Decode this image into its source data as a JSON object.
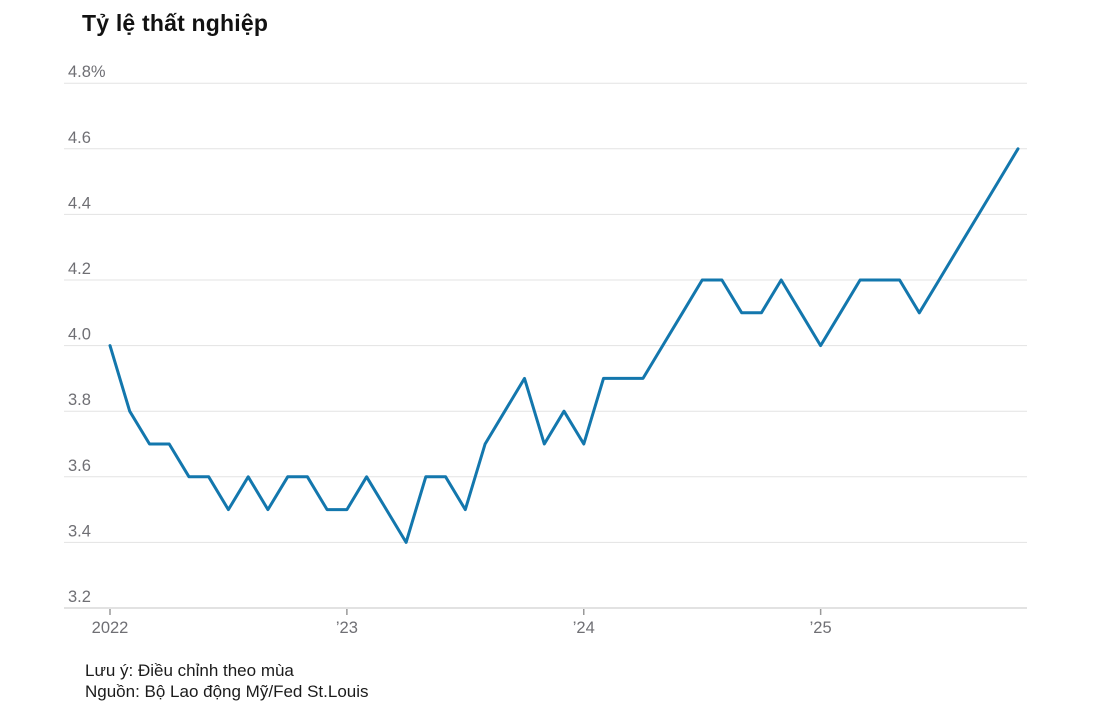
{
  "title": "Tỷ lệ thất nghiệp",
  "footer": {
    "note": "Lưu ý: Điều chỉnh theo mùa",
    "source": "Nguồn: Bộ Lao động Mỹ/Fed St.Louis"
  },
  "colors": {
    "line": "#1377ad",
    "grid": "#e3e3e3",
    "axis_line": "#c6c6c6",
    "tick": "#999999",
    "axis_label": "#6f6f74",
    "title": "#121212",
    "footer_text": "#1b1b1b"
  },
  "chart_data": {
    "type": "line",
    "title": "Tỷ lệ thất nghiệp",
    "unit": "%",
    "grid": true,
    "legend": false,
    "ylim": [
      3.2,
      4.8
    ],
    "y_tick_values": [
      3.2,
      3.4,
      3.6,
      3.8,
      4.0,
      4.2,
      4.4,
      4.6,
      4.8
    ],
    "y_tick_labels": [
      "3.2",
      "3.4",
      "3.6",
      "3.8",
      "4.0",
      "4.2",
      "4.4",
      "4.6",
      "4.8%"
    ],
    "x_tick_labels": [
      "2022",
      "’23",
      "’24",
      "’25"
    ],
    "x_tick_month_index": [
      0,
      12,
      24,
      36
    ],
    "x_frequency": "monthly",
    "x": [
      "2022-01",
      "2022-02",
      "2022-03",
      "2022-04",
      "2022-05",
      "2022-06",
      "2022-07",
      "2022-08",
      "2022-09",
      "2022-10",
      "2022-11",
      "2022-12",
      "2023-01",
      "2023-02",
      "2023-03",
      "2023-04",
      "2023-05",
      "2023-06",
      "2023-07",
      "2023-08",
      "2023-09",
      "2023-10",
      "2023-11",
      "2023-12",
      "2024-01",
      "2024-02",
      "2024-03",
      "2024-04",
      "2024-05",
      "2024-06",
      "2024-07",
      "2024-08",
      "2024-09",
      "2024-10",
      "2024-11",
      "2024-12",
      "2025-01",
      "2025-02",
      "2025-03",
      "2025-04",
      "2025-05",
      "2025-06",
      "2025-07",
      "2025-08",
      "2025-09",
      "2025-10",
      "2025-11"
    ],
    "series": [
      {
        "name": "Tỷ lệ thất nghiệp (%)",
        "values": [
          4.0,
          3.8,
          3.7,
          3.7,
          3.6,
          3.6,
          3.5,
          3.6,
          3.5,
          3.6,
          3.6,
          3.5,
          3.5,
          3.6,
          3.5,
          3.4,
          3.6,
          3.6,
          3.5,
          3.7,
          3.8,
          3.9,
          3.7,
          3.8,
          3.7,
          3.9,
          3.9,
          3.9,
          4.0,
          4.1,
          4.2,
          4.2,
          4.1,
          4.1,
          4.2,
          4.1,
          4.0,
          4.1,
          4.2,
          4.2,
          4.2,
          4.1,
          4.2,
          4.3,
          4.4,
          4.5,
          4.6
        ]
      }
    ]
  }
}
